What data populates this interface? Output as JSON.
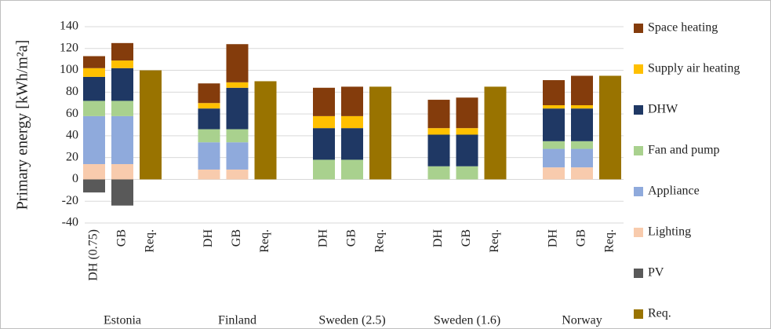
{
  "chart_data": {
    "type": "stacked_bar",
    "y_label": "Primary energy [kWh/m²a]",
    "groups": [
      "Estonia",
      "Finland",
      "Sweden (2.5)",
      "Sweden (1.6)",
      "Norway"
    ],
    "categories": [
      "DH (0.75)",
      "GB",
      "Req.",
      "DH",
      "GB",
      "Req.",
      "DH",
      "GB",
      "Req.",
      "DH",
      "GB",
      "Req.",
      "DH",
      "GB",
      "Req."
    ],
    "series": [
      {
        "name": "Space heating",
        "color": "#843c0c",
        "values": [
          11,
          16,
          null,
          18,
          35,
          null,
          26,
          27,
          null,
          26,
          28,
          null,
          23,
          27,
          null
        ]
      },
      {
        "name": "Supply air heating",
        "color": "#ffc000",
        "values": [
          8,
          7,
          null,
          5,
          5,
          null,
          11,
          11,
          null,
          6,
          6,
          null,
          3,
          3,
          null
        ]
      },
      {
        "name": "DHW",
        "color": "#1f3864",
        "values": [
          22,
          30,
          null,
          19,
          38,
          null,
          29,
          29,
          null,
          29,
          29,
          null,
          30,
          30,
          null
        ]
      },
      {
        "name": "Fan and pump",
        "color": "#a9d18e",
        "values": [
          14,
          14,
          null,
          12,
          12,
          null,
          18,
          18,
          null,
          12,
          12,
          null,
          7,
          7,
          null
        ]
      },
      {
        "name": "Appliance",
        "color": "#8faadc",
        "values": [
          44,
          44,
          null,
          25,
          25,
          null,
          null,
          null,
          null,
          null,
          null,
          null,
          17,
          17,
          null
        ]
      },
      {
        "name": "Lighting",
        "color": "#f8cbad",
        "values": [
          14,
          14,
          null,
          9,
          9,
          null,
          null,
          null,
          null,
          null,
          null,
          null,
          11,
          11,
          null
        ]
      },
      {
        "name": "PV",
        "color": "#595959",
        "values": [
          -12,
          -24,
          null,
          null,
          null,
          null,
          null,
          null,
          null,
          null,
          null,
          null,
          null,
          null,
          null
        ]
      },
      {
        "name": "Req.",
        "color": "#997300",
        "values": [
          null,
          null,
          100,
          null,
          null,
          90,
          null,
          null,
          85,
          null,
          null,
          85,
          null,
          null,
          95
        ]
      }
    ],
    "ylim": [
      -40,
      140
    ],
    "yticks": [
      -40,
      -20,
      0,
      20,
      40,
      60,
      80,
      100,
      120,
      140
    ],
    "grid": true,
    "legend": "right"
  }
}
